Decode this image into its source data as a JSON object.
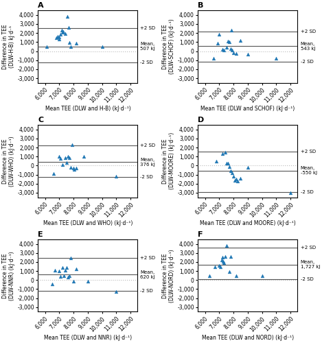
{
  "chart_data": [
    {
      "type": "scatter",
      "title": "A",
      "xlabel": "Mean TEE (DLW and H-B) (kJ·d⁻¹)",
      "ylabel": "Difference in TEE\n(DLW-H-B) kJ·d⁻¹",
      "x": [
        6100,
        6800,
        6900,
        7000,
        7000,
        7100,
        7150,
        7200,
        7250,
        7400,
        7550,
        7650,
        7700,
        7800,
        8200,
        10000
      ],
      "values": [
        500,
        1450,
        1650,
        1550,
        1300,
        1850,
        2300,
        2100,
        2200,
        1950,
        3800,
        2600,
        950,
        500,
        900,
        500
      ],
      "marker": "triangle",
      "reference_lines": [
        {
          "value": 0,
          "color": "#bbbbbb",
          "line_style": "dotted"
        },
        {
          "value": 507,
          "label": "Mean,\n507 kJ",
          "color": "#555555",
          "line_style": "solid"
        },
        {
          "value": 2550,
          "label": "+2 SD",
          "color": "#555555",
          "line_style": "solid"
        },
        {
          "value": -1250,
          "label": "-2 SD",
          "color": "#555555",
          "line_style": "solid"
        }
      ],
      "xlim": [
        5500,
        12500
      ],
      "xticks": [
        {
          "value": 6000,
          "label": "6,000"
        },
        {
          "value": 7000,
          "label": "7,000"
        },
        {
          "value": 8000,
          "label": "8,000"
        },
        {
          "value": 9000,
          "label": "9,000"
        },
        {
          "value": 10000,
          "label": "10,000"
        },
        {
          "value": 11000,
          "label": "11,000"
        },
        {
          "value": 12000,
          "label": "12,000"
        }
      ],
      "ylim": [
        -3500,
        4500
      ],
      "yticks": [
        {
          "value": -3000,
          "label": "-3,000"
        },
        {
          "value": -2000,
          "label": "-2,000"
        },
        {
          "value": -1000,
          "label": "-1,000"
        },
        0,
        {
          "value": 1000,
          "label": "1,000"
        },
        {
          "value": 2000,
          "label": "2,000"
        },
        {
          "value": 3000,
          "label": "3,000"
        },
        {
          "value": 4000,
          "label": "4,000"
        }
      ]
    },
    {
      "type": "scatter",
      "title": "B",
      "xlabel": "Mean TEE (DLW and SCHOF) (kJ·d⁻¹)",
      "ylabel": "Difference in TEE\n(DLW-SCHOF) (kJ·d⁻¹)",
      "x": [
        6600,
        6900,
        7000,
        7200,
        7300,
        7500,
        7600,
        7700,
        7800,
        7850,
        7900,
        8000,
        8200,
        8500,
        9000,
        11000
      ],
      "values": [
        -800,
        900,
        1850,
        200,
        100,
        400,
        1100,
        1050,
        300,
        2350,
        100,
        -150,
        -250,
        1150,
        -350,
        -800
      ],
      "marker": "triangle",
      "reference_lines": [
        {
          "value": 0,
          "color": "#bbbbbb",
          "line_style": "dotted"
        },
        {
          "value": 543,
          "label": "Mean,\n543 kJ",
          "color": "#555555",
          "line_style": "solid"
        },
        {
          "value": 2200,
          "label": "+2 SD",
          "color": "#555555",
          "line_style": "solid"
        },
        {
          "value": -1150,
          "label": "-2 SD",
          "color": "#555555",
          "line_style": "solid"
        }
      ],
      "xlim": [
        5500,
        12500
      ],
      "xticks": [
        {
          "value": 6000,
          "label": "6,000"
        },
        {
          "value": 7000,
          "label": "7,000"
        },
        {
          "value": 8000,
          "label": "8,000"
        },
        {
          "value": 9000,
          "label": "9,000"
        },
        {
          "value": 10000,
          "label": "10,000"
        },
        {
          "value": 11000,
          "label": "11,000"
        },
        {
          "value": 12000,
          "label": "12,000"
        }
      ],
      "ylim": [
        -3500,
        4500
      ],
      "yticks": [
        {
          "value": -3000,
          "label": "-3,000"
        },
        {
          "value": -2000,
          "label": "-2,000"
        },
        {
          "value": -1000,
          "label": "-1,000"
        },
        0,
        {
          "value": 1000,
          "label": "1,000"
        },
        {
          "value": 2000,
          "label": "2,000"
        },
        {
          "value": 3000,
          "label": "3,000"
        },
        {
          "value": 4000,
          "label": "4,000"
        }
      ]
    },
    {
      "type": "scatter",
      "title": "C",
      "xlabel": "Mean TEE (DLW and WHO) (kJ·d⁻¹)",
      "ylabel": "Difference in TEE\n(DLW-WHO) (kJ·d⁻¹)",
      "x": [
        6600,
        7000,
        7100,
        7200,
        7400,
        7500,
        7600,
        7700,
        7800,
        7900,
        8000,
        8050,
        8200,
        8700,
        11000
      ],
      "values": [
        -850,
        1000,
        800,
        100,
        900,
        300,
        1000,
        900,
        -200,
        2300,
        -300,
        -400,
        -300,
        1000,
        -1150
      ],
      "marker": "triangle",
      "reference_lines": [
        {
          "value": 0,
          "color": "#bbbbbb",
          "line_style": "dotted"
        },
        {
          "value": 376,
          "label": "Mean,\n376 kJ",
          "color": "#555555",
          "line_style": "solid"
        },
        {
          "value": 2250,
          "label": "+2 SD",
          "color": "#555555",
          "line_style": "solid"
        },
        {
          "value": -1250,
          "label": "-2 SD",
          "color": "#555555",
          "line_style": "solid"
        }
      ],
      "xlim": [
        5500,
        12500
      ],
      "xticks": [
        {
          "value": 6000,
          "label": "6,000"
        },
        {
          "value": 7000,
          "label": "7,000"
        },
        {
          "value": 8000,
          "label": "8,000"
        },
        {
          "value": 9000,
          "label": "9,000"
        },
        {
          "value": 10000,
          "label": "10,000"
        },
        {
          "value": 11000,
          "label": "11,000"
        },
        {
          "value": 12000,
          "label": "12,000"
        }
      ],
      "ylim": [
        -3500,
        4500
      ],
      "yticks": [
        {
          "value": -3000,
          "label": "-3,000"
        },
        {
          "value": -2000,
          "label": "-2,000"
        },
        {
          "value": -1000,
          "label": "-1,000"
        },
        0,
        {
          "value": 1000,
          "label": "1,000"
        },
        {
          "value": 2000,
          "label": "2,000"
        },
        {
          "value": 3000,
          "label": "3,000"
        },
        {
          "value": 4000,
          "label": "4,000"
        }
      ]
    },
    {
      "type": "scatter",
      "title": "D",
      "xlabel": "Mean TEE (DLW and MOORE) (kJ·d⁻¹)",
      "ylabel": "Difference in TEE\n(DLW-MOORE) (kJ·d⁻¹)",
      "x": [
        6800,
        7200,
        7400,
        7500,
        7600,
        7700,
        7800,
        7900,
        8000,
        8100,
        8200,
        8300,
        8500,
        9000,
        12000
      ],
      "values": [
        500,
        1300,
        1500,
        250,
        250,
        -100,
        -600,
        -800,
        -1200,
        -1600,
        -1500,
        -1700,
        -1400,
        -200,
        -3000
      ],
      "marker": "triangle",
      "reference_lines": [
        {
          "value": 0,
          "color": "#bbbbbb",
          "line_style": "dotted"
        },
        {
          "value": -550,
          "label": "Mean,\n-550 kJ",
          "color": "#555555",
          "line_style": "solid"
        },
        {
          "value": 1550,
          "label": "+2 SD",
          "color": "#555555",
          "line_style": "solid"
        },
        {
          "value": -2950,
          "label": "-2 SD",
          "color": "#555555",
          "line_style": "solid"
        }
      ],
      "xlim": [
        5500,
        12500
      ],
      "xticks": [
        {
          "value": 6000,
          "label": "6,000"
        },
        {
          "value": 7000,
          "label": "7,000"
        },
        {
          "value": 8000,
          "label": "8,000"
        },
        {
          "value": 9000,
          "label": "9,000"
        },
        {
          "value": 10000,
          "label": "10,000"
        },
        {
          "value": 11000,
          "label": "11,000"
        },
        {
          "value": 12000,
          "label": "12,000"
        }
      ],
      "ylim": [
        -3500,
        4500
      ],
      "yticks": [
        {
          "value": -3000,
          "label": "-3,000"
        },
        {
          "value": -2000,
          "label": "-2,000"
        },
        {
          "value": -1000,
          "label": "-1,000"
        },
        0,
        {
          "value": 1000,
          "label": "1,000"
        },
        {
          "value": 2000,
          "label": "2,000"
        },
        {
          "value": 3000,
          "label": "3,000"
        },
        {
          "value": 4000,
          "label": "4,000"
        }
      ]
    },
    {
      "type": "scatter",
      "title": "E",
      "xlabel": "Mean TEE (DLW and NNR) (kJ·d⁻¹)",
      "ylabel": "Difference in TEE\n(DLW-NNR) (kJ·d⁻¹)",
      "x": [
        6500,
        6700,
        7000,
        7100,
        7200,
        7300,
        7400,
        7500,
        7600,
        7700,
        7800,
        8000,
        8200,
        9000,
        11000
      ],
      "values": [
        -400,
        1100,
        1000,
        400,
        1350,
        500,
        1100,
        1400,
        350,
        450,
        2450,
        -150,
        1250,
        -150,
        -1300
      ],
      "marker": "triangle",
      "reference_lines": [
        {
          "value": 0,
          "color": "#bbbbbb",
          "line_style": "dotted"
        },
        {
          "value": 620,
          "label": "Mean,\n620 kJ",
          "color": "#555555",
          "line_style": "solid"
        },
        {
          "value": 2450,
          "label": "+2 SD",
          "color": "#555555",
          "line_style": "solid"
        },
        {
          "value": -1200,
          "label": "-2 SD",
          "color": "#555555",
          "line_style": "solid"
        }
      ],
      "xlim": [
        5500,
        12500
      ],
      "xticks": [
        {
          "value": 6000,
          "label": "6,000"
        },
        {
          "value": 7000,
          "label": "7,000"
        },
        {
          "value": 8000,
          "label": "8,000"
        },
        {
          "value": 9000,
          "label": "9,000"
        },
        {
          "value": 10000,
          "label": "10,000"
        },
        {
          "value": 11000,
          "label": "11,000"
        },
        {
          "value": 12000,
          "label": "12,000"
        }
      ],
      "ylim": [
        -3500,
        4500
      ],
      "yticks": [
        {
          "value": -3000,
          "label": "-3,000"
        },
        {
          "value": -2000,
          "label": "-2,000"
        },
        {
          "value": -1000,
          "label": "-1,000"
        },
        0,
        {
          "value": 1000,
          "label": "1,000"
        },
        {
          "value": 2000,
          "label": "2,000"
        },
        {
          "value": 3000,
          "label": "3,000"
        },
        {
          "value": 4000,
          "label": "4,000"
        }
      ]
    },
    {
      "type": "scatter",
      "title": "F",
      "xlabel": "Mean TEE (DLW and NORD) (kJ·d⁻¹)",
      "ylabel": "Difference in TEE\n(DLW-NORD) (kJ·d⁻¹)",
      "x": [
        6300,
        6700,
        7000,
        7100,
        7150,
        7200,
        7250,
        7300,
        7400,
        7500,
        7700,
        7800,
        8200,
        10000
      ],
      "values": [
        500,
        1500,
        1600,
        1500,
        2200,
        2500,
        2100,
        1900,
        2600,
        3800,
        900,
        2600,
        500,
        500
      ],
      "marker": "triangle",
      "reference_lines": [
        {
          "value": 0,
          "color": "#bbbbbb",
          "line_style": "dotted"
        },
        {
          "value": 1727,
          "label": "Mean,\n1,727 kJ",
          "color": "#555555",
          "line_style": "solid"
        },
        {
          "value": 3600,
          "label": "+2 SD",
          "color": "#555555",
          "line_style": "solid"
        },
        {
          "value": 100,
          "label": "-2 SD",
          "color": "#555555",
          "line_style": "solid"
        }
      ],
      "xlim": [
        5500,
        12500
      ],
      "xticks": [
        {
          "value": 6000,
          "label": "6,000"
        },
        {
          "value": 7000,
          "label": "7,000"
        },
        {
          "value": 8000,
          "label": "8,000"
        },
        {
          "value": 9000,
          "label": "9,000"
        },
        {
          "value": 10000,
          "label": "10,000"
        },
        {
          "value": 11000,
          "label": "11,000"
        },
        {
          "value": 12000,
          "label": "12,000"
        }
      ],
      "ylim": [
        -3500,
        4500
      ],
      "yticks": [
        {
          "value": -3000,
          "label": "-3,000"
        },
        {
          "value": -2000,
          "label": "-2,000"
        },
        {
          "value": -1000,
          "label": "-1,000"
        },
        0,
        {
          "value": 1000,
          "label": "1,000"
        },
        {
          "value": 2000,
          "label": "2,000"
        },
        {
          "value": 3000,
          "label": "3,000"
        },
        {
          "value": 4000,
          "label": "4,000"
        }
      ]
    }
  ]
}
